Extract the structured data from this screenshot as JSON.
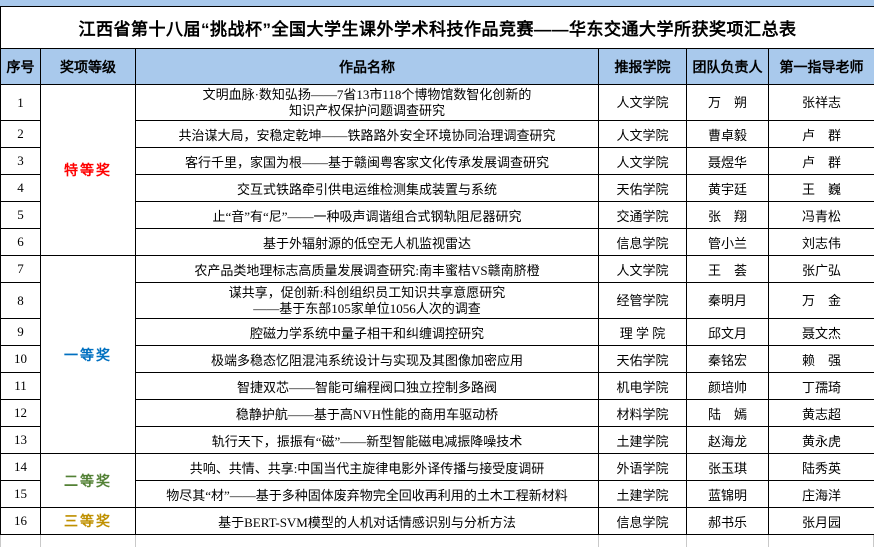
{
  "page": {
    "title": "江西省第十八届“挑战杯”全国大学生课外学术科技作品竞赛——华东交通大学所获奖项汇总表"
  },
  "colors": {
    "header_bg": "#A9C9EC",
    "border": "#000000",
    "grade_special": "#FF0000",
    "grade_first": "#0070C0",
    "grade_second": "#538135",
    "grade_third": "#BF9000",
    "gridline": "#C9C9C9"
  },
  "table": {
    "columns": [
      "序号",
      "奖项等级",
      "作品名称",
      "推报学院",
      "团队负责人",
      "第一指导老师"
    ],
    "award_groups": [
      {
        "label": "特等奖",
        "color": "#FF0000",
        "row_count": 6
      },
      {
        "label": "一等奖",
        "color": "#0070C0",
        "row_count": 7
      },
      {
        "label": "二等奖",
        "color": "#538135",
        "row_count": 2
      },
      {
        "label": "三等奖",
        "color": "#BF9000",
        "row_count": 1
      }
    ],
    "rows": [
      {
        "no": "1",
        "work_lines": [
          "文明血脉·数知弘扬——7省13市118个博物馆数智化创新的",
          "知识产权保护问题调查研究"
        ],
        "college": "人文学院",
        "leader": "万　朔",
        "teacher": "张祥志"
      },
      {
        "no": "2",
        "work_lines": [
          "共治谋大局，安稳定乾坤——铁路路外安全环境协同治理调查研究"
        ],
        "college": "人文学院",
        "leader": "曹卓毅",
        "teacher": "卢　群"
      },
      {
        "no": "3",
        "work_lines": [
          "客行千里，家国为根——基于赣闽粤客家文化传承发展调查研究"
        ],
        "college": "人文学院",
        "leader": "聂煜华",
        "teacher": "卢　群"
      },
      {
        "no": "4",
        "work_lines": [
          "交互式铁路牵引供电运维检测集成装置与系统"
        ],
        "college": "天佑学院",
        "leader": "黄宇廷",
        "teacher": "王　巍"
      },
      {
        "no": "5",
        "work_lines": [
          "止“音”有“尼”——一种吸声调谐组合式钢轨阻尼器研究"
        ],
        "college": "交通学院",
        "leader": "张　翔",
        "teacher": "冯青松"
      },
      {
        "no": "6",
        "work_lines": [
          "基于外辐射源的低空无人机监视雷达"
        ],
        "college": "信息学院",
        "leader": "管小兰",
        "teacher": "刘志伟"
      },
      {
        "no": "7",
        "work_lines": [
          "农产品类地理标志高质量发展调查研究:南丰蜜桔VS赣南脐橙"
        ],
        "college": "人文学院",
        "leader": "王　荟",
        "teacher": "张广弘"
      },
      {
        "no": "8",
        "work_lines": [
          "谋共享，促创新:科创组织员工知识共享意愿研究",
          "——基于东部105家单位1056人次的调查"
        ],
        "college": "经管学院",
        "leader": "秦明月",
        "teacher": "万　金"
      },
      {
        "no": "9",
        "work_lines": [
          "腔磁力学系统中量子相干和纠缠调控研究"
        ],
        "college": "理 学 院",
        "leader": "邱文月",
        "teacher": "聂文杰"
      },
      {
        "no": "10",
        "work_lines": [
          "极端多稳态忆阻混沌系统设计与实现及其图像加密应用"
        ],
        "college": "天佑学院",
        "leader": "秦铭宏",
        "teacher": "赖　强"
      },
      {
        "no": "11",
        "work_lines": [
          "智捷双芯——智能可编程阀口独立控制多路阀"
        ],
        "college": "机电学院",
        "leader": "颜培帅",
        "teacher": "丁孺琦"
      },
      {
        "no": "12",
        "work_lines": [
          "稳静护航——基于高NVH性能的商用车驱动桥"
        ],
        "college": "材料学院",
        "leader": "陆　嫣",
        "teacher": "黄志超"
      },
      {
        "no": "13",
        "work_lines": [
          "轨行天下，振振有“磁”——新型智能磁电减振降噪技术"
        ],
        "college": "土建学院",
        "leader": "赵海龙",
        "teacher": "黄永虎"
      },
      {
        "no": "14",
        "work_lines": [
          "共响、共情、共享:中国当代主旋律电影外译传播与接受度调研"
        ],
        "college": "外语学院",
        "leader": "张玉琪",
        "teacher": "陆秀英"
      },
      {
        "no": "15",
        "work_lines": [
          "物尽其“材”——基于多种固体废弃物完全回收再利用的土木工程新材料"
        ],
        "college": "土建学院",
        "leader": "蓝锦明",
        "teacher": "庄海洋"
      },
      {
        "no": "16",
        "work_lines": [
          "基于BERT-SVM模型的人机对话情感识别与分析方法"
        ],
        "college": "信息学院",
        "leader": "郝书乐",
        "teacher": "张月园"
      }
    ]
  }
}
